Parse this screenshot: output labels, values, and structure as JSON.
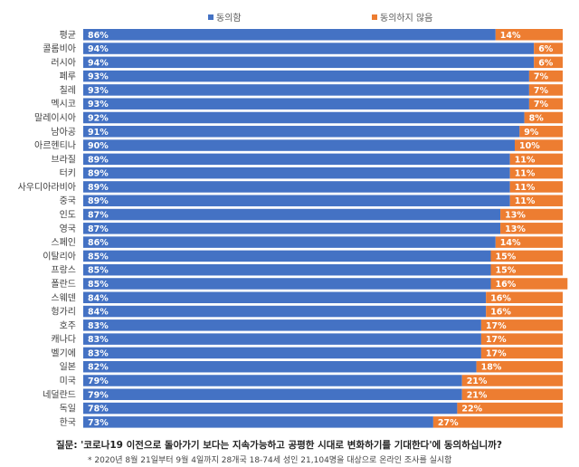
{
  "chart_data": {
    "type": "bar",
    "stacked": true,
    "orientation": "horizontal",
    "legend_position": "top",
    "categories": [
      "평균",
      "콜롬비아",
      "러시아",
      "페루",
      "칠레",
      "멕시코",
      "말레이시아",
      "남아공",
      "아르헨티나",
      "브라질",
      "터키",
      "사우디아라비아",
      "중국",
      "인도",
      "영국",
      "스페인",
      "이탈리아",
      "프랑스",
      "폴란드",
      "스웨덴",
      "헝가리",
      "호주",
      "캐나다",
      "벨기에",
      "일본",
      "미국",
      "네덜란드",
      "독일",
      "한국"
    ],
    "series": [
      {
        "name": "동의함",
        "color": "#4472C4",
        "values": [
          86,
          94,
          94,
          93,
          93,
          93,
          92,
          91,
          90,
          89,
          89,
          89,
          89,
          87,
          87,
          86,
          85,
          85,
          85,
          84,
          84,
          83,
          83,
          83,
          82,
          79,
          79,
          78,
          73
        ]
      },
      {
        "name": "동의하지 않음",
        "color": "#ED7D31",
        "values": [
          14,
          6,
          6,
          7,
          7,
          7,
          8,
          9,
          10,
          11,
          11,
          11,
          11,
          13,
          13,
          14,
          15,
          15,
          16,
          16,
          16,
          17,
          17,
          17,
          18,
          21,
          21,
          22,
          27
        ]
      }
    ],
    "xlim": [
      0,
      100
    ],
    "grid": false
  },
  "footer": {
    "question": "질문: '코로나19 이전으로 돌아가기 보다는 지속가능하고 공평한 시대로 변화하기를 기대한다'에 동의하십니까?",
    "note": "* 2020년 8월 21일부터 9월 4일까지 28개국 18-74세 성인 21,104명을 대상으로 온라인 조사를 실시함"
  }
}
